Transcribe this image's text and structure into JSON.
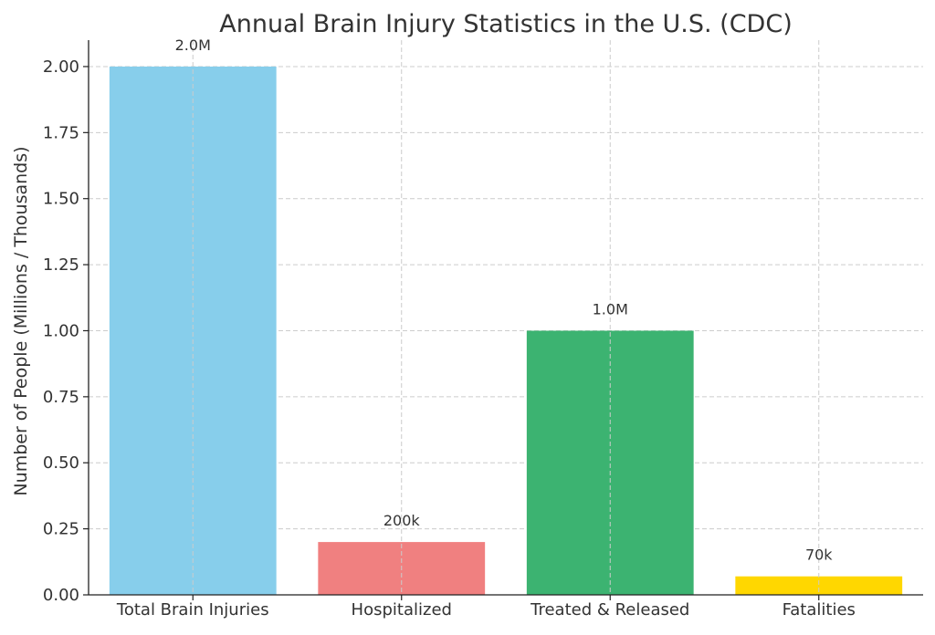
{
  "chart_data": {
    "type": "bar",
    "title": "Annual Brain Injury Statistics in the U.S. (CDC)",
    "xlabel": "",
    "ylabel": "Number of People (Millions / Thousands)",
    "categories": [
      "Total Brain Injuries",
      "Hospitalized",
      "Treated & Released",
      "Fatalities"
    ],
    "values": [
      2.0,
      0.2,
      1.0,
      0.07
    ],
    "value_labels": [
      "2.0M",
      "200k",
      "1.0M",
      "70k"
    ],
    "colors": [
      "#87ceeb",
      "#f08080",
      "#3cb371",
      "#ffd700"
    ],
    "ylim": [
      0,
      2.1
    ],
    "y_ticks": [
      0.0,
      0.25,
      0.5,
      0.75,
      1.0,
      1.25,
      1.5,
      1.75,
      2.0
    ],
    "y_tick_labels": [
      "0.00",
      "0.25",
      "0.50",
      "0.75",
      "1.00",
      "1.25",
      "1.50",
      "1.75",
      "2.00"
    ],
    "grid": true,
    "legend": "none"
  }
}
